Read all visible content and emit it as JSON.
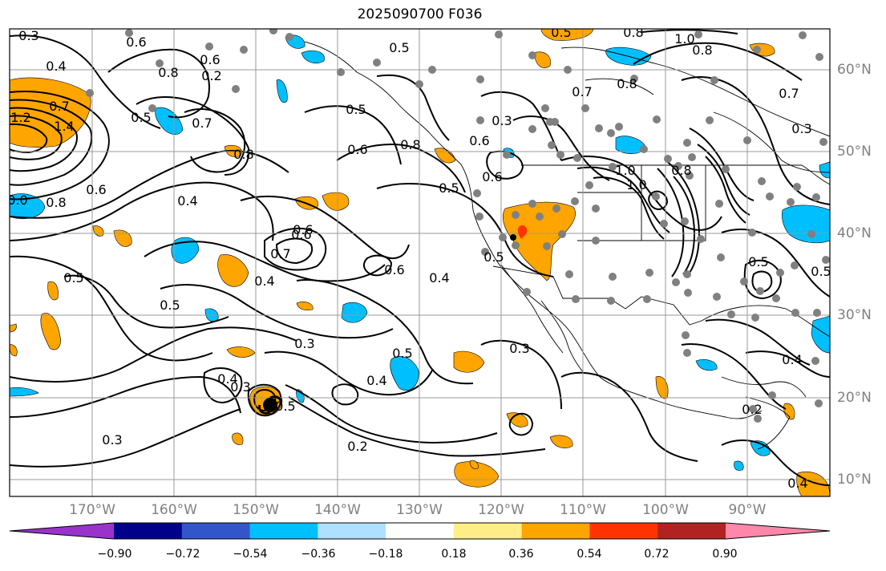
{
  "title": "2025090700 F036",
  "lon_labels": [
    "170°W",
    "160°W",
    "150°W",
    "140°W",
    "130°W",
    "120°W",
    "110°W",
    "100°W",
    "90°W"
  ],
  "lat_labels": [
    "60°N",
    "50°N",
    "40°N",
    "30°N",
    "20°N",
    "10°N"
  ],
  "colorbar": {
    "ticks": [
      "−0.90",
      "−0.72",
      "−0.54",
      "−0.36",
      "−0.18",
      "0.18",
      "0.36",
      "0.54",
      "0.72",
      "0.90"
    ],
    "colors": [
      "#9933cc",
      "#00008b",
      "#3355cc",
      "#00bfff",
      "#aee0ff",
      "#ffffff",
      "#ffee88",
      "#ffa500",
      "#ff3300",
      "#b22222",
      "#ff88aa"
    ]
  },
  "colors": {
    "positive_shade": "#ffa500",
    "negative_shade": "#00bfff",
    "contour": "#000000",
    "grid": "#999999",
    "station": "#808080"
  },
  "contour_labels": [
    "0.3",
    "0.4",
    "0.6",
    "0.6",
    "0.8",
    "0.7",
    "0.5",
    "0.2",
    "1.2",
    "1.4",
    "0.7",
    "0.8",
    "0.4",
    "0.6",
    "0.8",
    "0.5",
    "0.6",
    "0.5",
    "0.8",
    "0.6",
    "0.5",
    "0.4",
    "0.6",
    "0.7",
    "0.6",
    "0.4",
    "0.5",
    "0.3",
    "0.4",
    "0.3",
    "0.5",
    "0.5",
    "0.6",
    "0.5",
    "0.4",
    "0.3",
    "0.5",
    "0.2",
    "0.3",
    "0.3",
    "0.5",
    "1.0",
    "0.8",
    "0.7",
    "0.3",
    "0.8",
    "1.0",
    "0.5",
    "0.4",
    "0.2",
    "0.4",
    "0.5",
    "1.0",
    "0.8",
    "0.0",
    "0.8",
    "0.7",
    "0.6"
  ]
}
